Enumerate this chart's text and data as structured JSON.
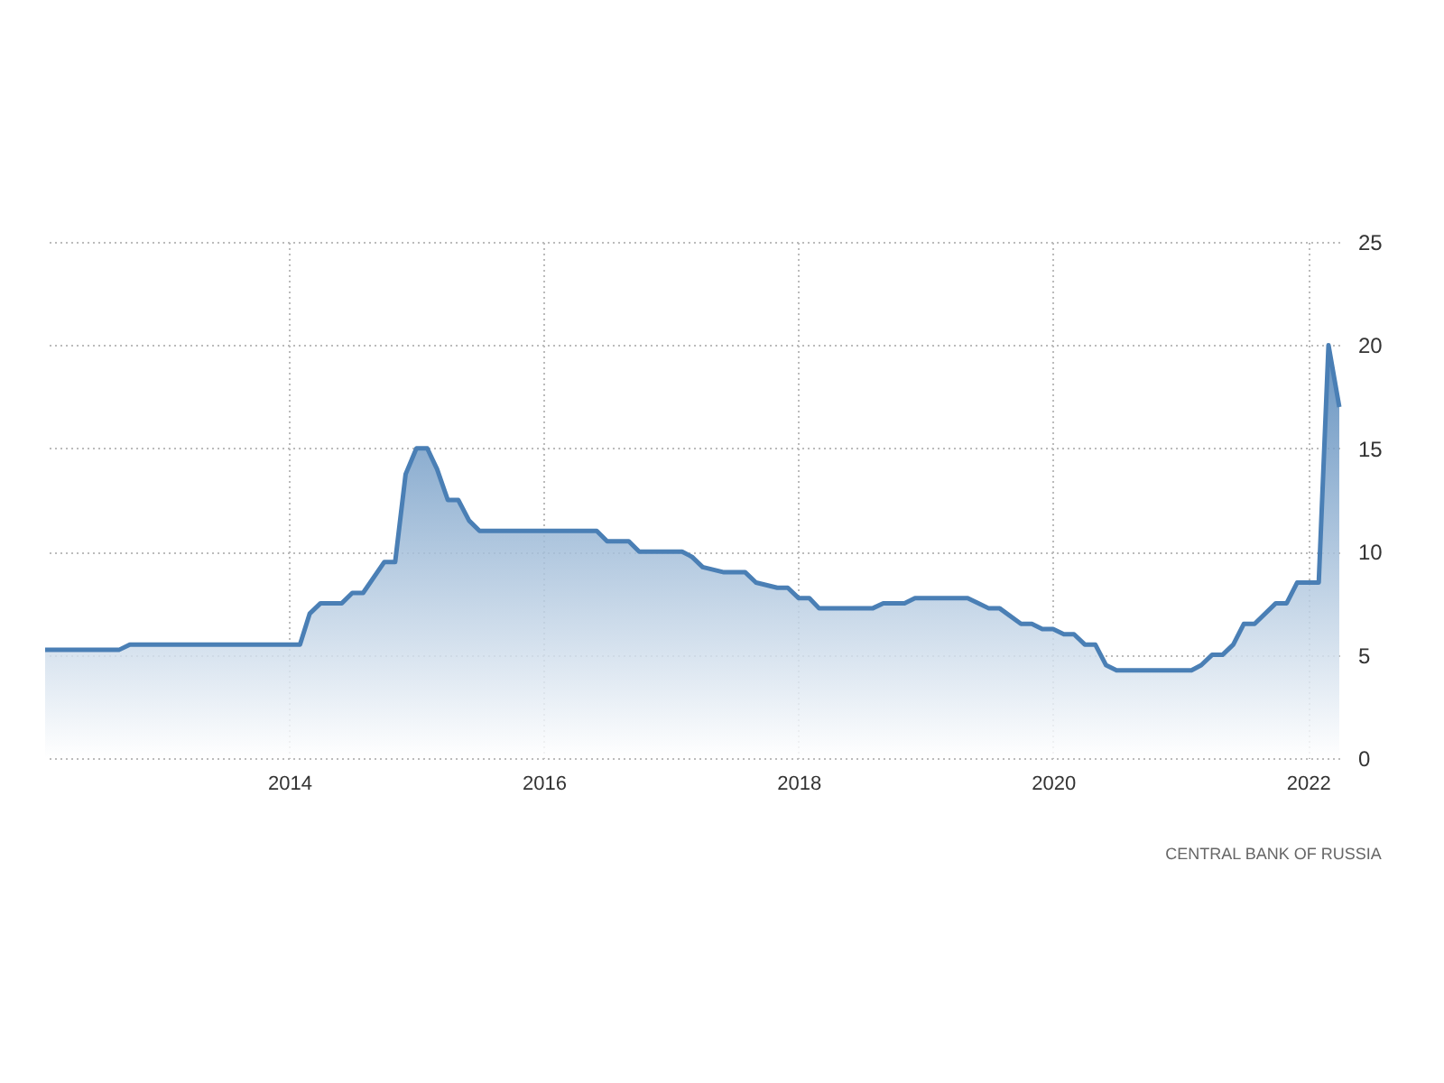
{
  "chart_data": {
    "type": "area",
    "annotations": [
      "CENTRAL BANK OF RUSSIA"
    ],
    "x": [
      "2012-02",
      "2012-09",
      "2012-10",
      "2014-02",
      "2014-03",
      "2014-04",
      "2014-06",
      "2014-07",
      "2014-08",
      "2014-10",
      "2014-11",
      "2014-12",
      "2015-01",
      "2015-02",
      "2015-03",
      "2015-04",
      "2015-05",
      "2015-06",
      "2015-07",
      "2016-06",
      "2016-07",
      "2016-09",
      "2016-10",
      "2017-02",
      "2017-03",
      "2017-04",
      "2017-06",
      "2017-08",
      "2017-09",
      "2017-11",
      "2017-12",
      "2018-01",
      "2018-02",
      "2018-03",
      "2018-08",
      "2018-09",
      "2018-11",
      "2018-12",
      "2019-05",
      "2019-06",
      "2019-07",
      "2019-08",
      "2019-10",
      "2019-11",
      "2019-12",
      "2020-01",
      "2020-02",
      "2020-03",
      "2020-04",
      "2020-05",
      "2020-06",
      "2020-07",
      "2021-02",
      "2021-03",
      "2021-04",
      "2021-05",
      "2021-06",
      "2021-07",
      "2021-08",
      "2021-10",
      "2021-11",
      "2021-12",
      "2022-01",
      "2022-02",
      "2022-03",
      "2022-04"
    ],
    "series": [
      {
        "color": "#4a7fb5",
        "values": [
          5.25,
          5.25,
          5.5,
          5.5,
          7,
          7.5,
          7.5,
          8,
          8,
          9.5,
          9.5,
          13.75,
          15,
          15,
          14,
          12.5,
          12.5,
          11.5,
          11,
          11,
          10.5,
          10.5,
          10,
          10,
          9.75,
          9.25,
          9,
          9,
          8.5,
          8.25,
          8.25,
          7.75,
          7.75,
          7.25,
          7.25,
          7.5,
          7.5,
          7.75,
          7.75,
          7.5,
          7.25,
          7.25,
          6.5,
          6.5,
          6.25,
          6.25,
          6,
          6,
          5.5,
          5.5,
          4.5,
          4.25,
          4.25,
          4.5,
          5,
          5,
          5.5,
          6.5,
          6.5,
          7.5,
          7.5,
          8.5,
          8.5,
          8.5,
          20,
          17
        ]
      }
    ],
    "xlim": [
      "2012-02",
      "2022-04"
    ],
    "xticks": [
      {
        "value": "2014",
        "label": "2014"
      },
      {
        "value": "2016",
        "label": "2016"
      },
      {
        "value": "2018",
        "label": "2018"
      },
      {
        "value": "2020",
        "label": "2020"
      },
      {
        "value": "2022",
        "label": "2022"
      }
    ],
    "ylim": [
      0,
      25
    ],
    "yticks": [
      0,
      5,
      10,
      15,
      20,
      25
    ],
    "grid": true
  }
}
